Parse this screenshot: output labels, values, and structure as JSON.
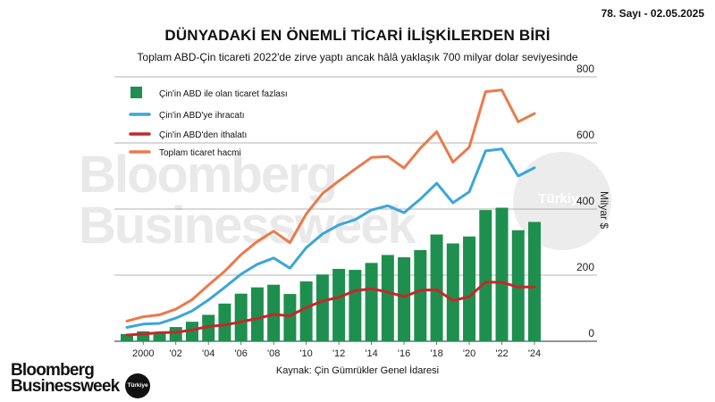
{
  "header": {
    "issue": "78. Sayı - 02.05.2025",
    "title": "DÜNYADAKİ EN ÖNEMLİ TİCARİ İLİŞKİLERDEN BİRİ",
    "subtitle": "Toplam ABD-Çin ticareti 2022'de zirve yaptı ancak hâlâ yaklaşık 700 milyar dolar seviyesinde"
  },
  "watermark": {
    "line1": "Bloomberg",
    "line2": "Businessweek",
    "badge": "Türkiye"
  },
  "footer": {
    "source": "Kaynak: Çin Gümrükler Genel İdaresi",
    "brand_line1": "Bloomberg",
    "brand_line2": "Businessweek",
    "brand_badge": "Türkiye"
  },
  "colors": {
    "surplus": "#1e8f4e",
    "exports": "#3aa6d8",
    "imports": "#c2282c",
    "total": "#ea7a4c"
  },
  "chart_data": {
    "type": "bar",
    "ylabel": "Milyar $",
    "ylim": [
      0,
      800
    ],
    "yticks": [
      0,
      200,
      400,
      600,
      800
    ],
    "x": [
      1999,
      2000,
      2001,
      2002,
      2003,
      2004,
      2005,
      2006,
      2007,
      2008,
      2009,
      2010,
      2011,
      2012,
      2013,
      2014,
      2015,
      2016,
      2017,
      2018,
      2019,
      2020,
      2021,
      2022,
      2023,
      2024
    ],
    "xtick_labels": [
      "2000",
      "'02",
      "'04",
      "'06",
      "'08",
      "'10",
      "'12",
      "'14",
      "'16",
      "'18",
      "'20",
      "'22",
      "'24"
    ],
    "xtick_years": [
      2000,
      2002,
      2004,
      2006,
      2008,
      2010,
      2012,
      2014,
      2016,
      2018,
      2020,
      2022,
      2024
    ],
    "legend_position": "top-left",
    "series": [
      {
        "name": "Çin'in ABD ile olan ticaret fazlası",
        "kind": "bar",
        "values": [
          22,
          30,
          28,
          43,
          59,
          80,
          114,
          144,
          163,
          171,
          143,
          181,
          202,
          219,
          216,
          237,
          261,
          254,
          276,
          323,
          296,
          317,
          397,
          404,
          336,
          361
        ]
      },
      {
        "name": "Çin'in ABD'ye ihracatı",
        "kind": "line",
        "values": [
          42,
          52,
          54,
          70,
          92,
          125,
          163,
          203,
          233,
          252,
          221,
          283,
          325,
          352,
          368,
          397,
          410,
          389,
          430,
          478,
          419,
          452,
          576,
          582,
          500,
          525
        ]
      },
      {
        "name": "Çin'in ABD'den ithalatı",
        "kind": "line",
        "values": [
          19,
          22,
          26,
          27,
          34,
          45,
          49,
          59,
          69,
          81,
          77,
          102,
          122,
          133,
          153,
          159,
          149,
          135,
          154,
          156,
          123,
          135,
          179,
          178,
          164,
          164
        ]
      },
      {
        "name": "Toplam ticaret hacmi",
        "kind": "line",
        "values": [
          61,
          74,
          80,
          97,
          126,
          170,
          212,
          262,
          302,
          333,
          298,
          385,
          447,
          485,
          521,
          556,
          559,
          524,
          584,
          634,
          542,
          587,
          755,
          760,
          664,
          689
        ]
      }
    ]
  }
}
